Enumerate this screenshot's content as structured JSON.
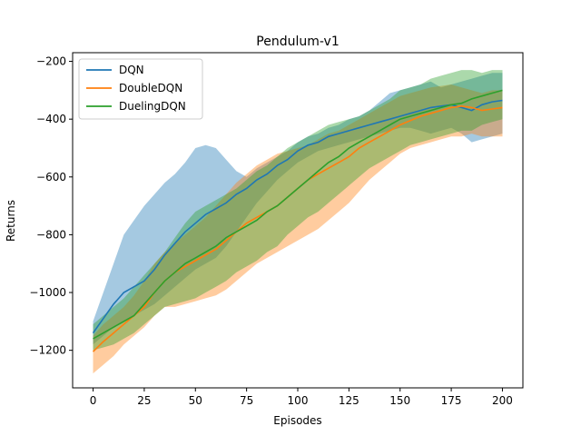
{
  "chart_data": {
    "type": "line",
    "title": "Pendulum-v1",
    "xlabel": "Episodes",
    "ylabel": "Returns",
    "xlim": [
      -10,
      210
    ],
    "ylim": [
      -1330,
      -170
    ],
    "xticks": [
      0,
      25,
      50,
      75,
      100,
      125,
      150,
      175,
      200
    ],
    "yticks": [
      -1200,
      -1000,
      -800,
      -600,
      -400,
      -200
    ],
    "grid": false,
    "legend": "top-left",
    "x": [
      0,
      5,
      10,
      15,
      20,
      25,
      30,
      35,
      40,
      45,
      50,
      55,
      60,
      65,
      70,
      75,
      80,
      85,
      90,
      95,
      100,
      105,
      110,
      115,
      120,
      125,
      130,
      135,
      140,
      145,
      150,
      155,
      160,
      165,
      170,
      175,
      180,
      185,
      190,
      195,
      200
    ],
    "series": [
      {
        "name": "DQN",
        "color": "#1f77b4",
        "mean": [
          -1140,
          -1090,
          -1040,
          -1000,
          -980,
          -960,
          -920,
          -870,
          -830,
          -790,
          -760,
          -730,
          -710,
          -690,
          -660,
          -640,
          -610,
          -590,
          -560,
          -540,
          -510,
          -490,
          -480,
          -460,
          -450,
          -440,
          -430,
          -420,
          -410,
          -400,
          -390,
          -380,
          -370,
          -360,
          -355,
          -350,
          -360,
          -370,
          -350,
          -340,
          -335
        ],
        "upper": [
          -1100,
          -1000,
          -900,
          -800,
          -750,
          -700,
          -660,
          -620,
          -590,
          -550,
          -500,
          -490,
          -500,
          -540,
          -580,
          -600,
          -570,
          -550,
          -530,
          -510,
          -480,
          -460,
          -450,
          -430,
          -420,
          -400,
          -390,
          -370,
          -340,
          -310,
          -300,
          -290,
          -280,
          -270,
          -290,
          -280,
          -270,
          -260,
          -250,
          -240,
          -240
        ],
        "lower": [
          -1180,
          -1150,
          -1120,
          -1100,
          -1080,
          -1060,
          -1040,
          -1010,
          -980,
          -950,
          -920,
          -900,
          -880,
          -840,
          -790,
          -740,
          -690,
          -650,
          -610,
          -580,
          -550,
          -530,
          -510,
          -500,
          -490,
          -480,
          -470,
          -460,
          -450,
          -440,
          -430,
          -430,
          -440,
          -450,
          -440,
          -430,
          -450,
          -480,
          -470,
          -460,
          -450
        ]
      },
      {
        "name": "DoubleDQN",
        "color": "#ff7f0e",
        "mean": [
          -1205,
          -1170,
          -1140,
          -1110,
          -1080,
          -1050,
          -1000,
          -960,
          -930,
          -910,
          -890,
          -870,
          -850,
          -820,
          -790,
          -760,
          -740,
          -720,
          -700,
          -670,
          -640,
          -610,
          -590,
          -570,
          -550,
          -530,
          -500,
          -480,
          -460,
          -440,
          -420,
          -405,
          -390,
          -380,
          -370,
          -360,
          -355,
          -360,
          -370,
          -365,
          -360
        ],
        "upper": [
          -1150,
          -1110,
          -1080,
          -1050,
          -1010,
          -960,
          -900,
          -860,
          -830,
          -800,
          -770,
          -740,
          -700,
          -660,
          -620,
          -590,
          -560,
          -540,
          -520,
          -510,
          -500,
          -490,
          -470,
          -450,
          -440,
          -420,
          -400,
          -380,
          -360,
          -340,
          -320,
          -310,
          -300,
          -290,
          -285,
          -280,
          -290,
          -300,
          -310,
          -300,
          -300
        ],
        "lower": [
          -1280,
          -1250,
          -1220,
          -1180,
          -1150,
          -1120,
          -1080,
          -1050,
          -1050,
          -1040,
          -1030,
          -1020,
          -1010,
          -990,
          -960,
          -930,
          -900,
          -880,
          -860,
          -840,
          -820,
          -800,
          -780,
          -750,
          -720,
          -690,
          -650,
          -610,
          -580,
          -550,
          -520,
          -500,
          -490,
          -480,
          -470,
          -460,
          -460,
          -450,
          -460,
          -460,
          -460
        ]
      },
      {
        "name": "DuelingDQN",
        "color": "#2ca02c",
        "mean": [
          -1160,
          -1140,
          -1120,
          -1100,
          -1080,
          -1040,
          -1000,
          -960,
          -930,
          -900,
          -880,
          -860,
          -840,
          -810,
          -790,
          -770,
          -750,
          -720,
          -700,
          -670,
          -640,
          -610,
          -580,
          -550,
          -530,
          -500,
          -480,
          -460,
          -440,
          -420,
          -400,
          -390,
          -380,
          -370,
          -360,
          -350,
          -345,
          -330,
          -320,
          -310,
          -300
        ],
        "upper": [
          -1110,
          -1080,
          -1050,
          -1020,
          -980,
          -940,
          -900,
          -860,
          -810,
          -760,
          -720,
          -700,
          -680,
          -660,
          -640,
          -610,
          -580,
          -560,
          -530,
          -500,
          -480,
          -460,
          -440,
          -420,
          -410,
          -400,
          -390,
          -370,
          -350,
          -330,
          -300,
          -290,
          -280,
          -260,
          -250,
          -240,
          -230,
          -230,
          -240,
          -230,
          -230
        ],
        "lower": [
          -1200,
          -1190,
          -1180,
          -1160,
          -1140,
          -1110,
          -1080,
          -1050,
          -1040,
          -1030,
          -1020,
          -1000,
          -980,
          -960,
          -930,
          -910,
          -890,
          -860,
          -840,
          -800,
          -770,
          -740,
          -720,
          -690,
          -660,
          -630,
          -600,
          -570,
          -550,
          -530,
          -510,
          -490,
          -480,
          -470,
          -460,
          -450,
          -440,
          -440,
          -420,
          -410,
          -400
        ]
      }
    ]
  }
}
